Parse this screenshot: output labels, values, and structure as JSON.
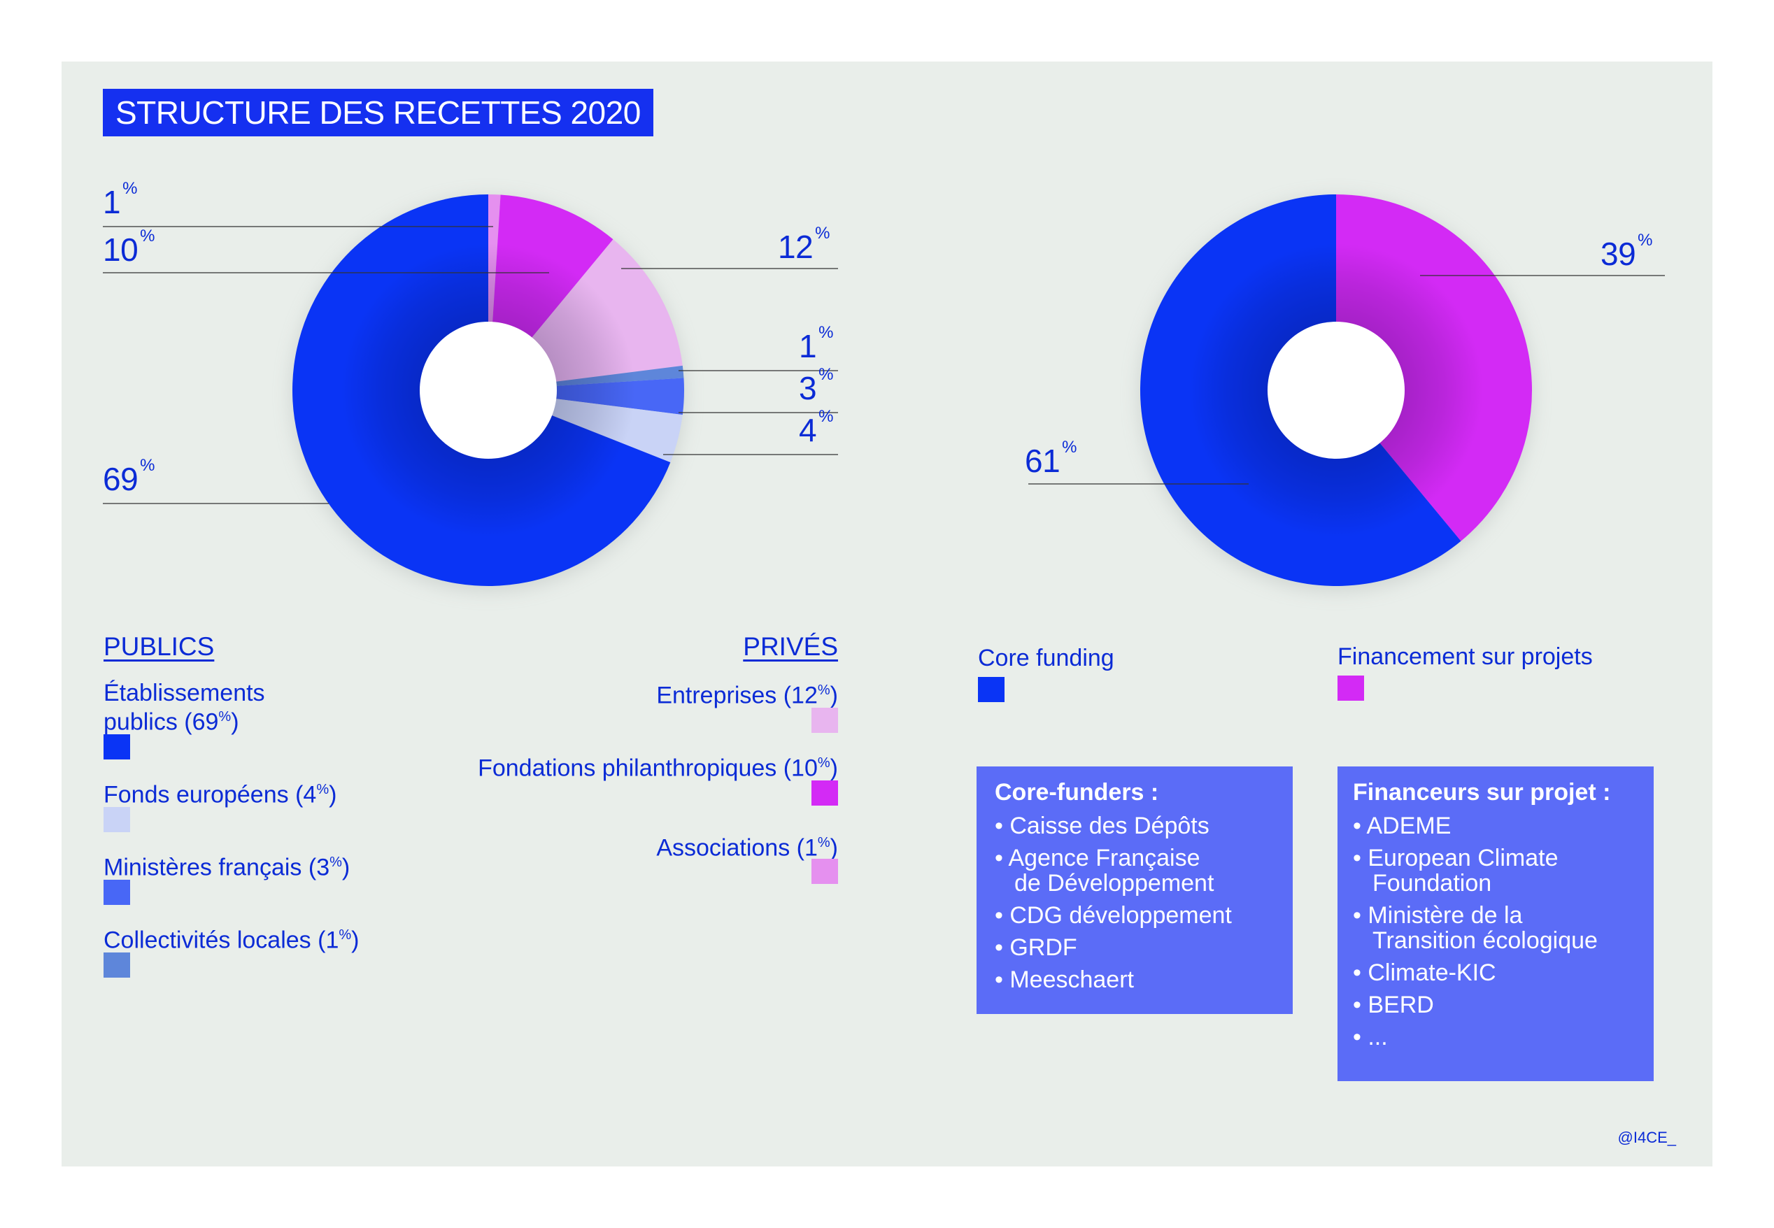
{
  "title": "STRUCTURE DES RECETTES 2020",
  "credit": "@I4CE_",
  "colors": {
    "background": "#e9eeea",
    "accent_blue": "#0a34f5",
    "magenta": "#d32af5",
    "box_blue": "#5b6cf7"
  },
  "chart_data": [
    {
      "type": "pie",
      "variant": "donut",
      "series": [
        {
          "label": "Établissements publics",
          "value": 69,
          "group": "PUBLICS",
          "color": "#0a34f5"
        },
        {
          "label": "Collectivités locales",
          "value": 1,
          "group": "PUBLICS",
          "color": "#5e86da"
        },
        {
          "label": "Fondations philanthropiques",
          "value": 10,
          "group": "PRIVÉS",
          "color": "#d32af5"
        },
        {
          "label": "Entreprises",
          "value": 12,
          "group": "PRIVÉS",
          "color": "#e8b5ef"
        },
        {
          "label": "Ministères français",
          "value": 3,
          "group": "PUBLICS",
          "color": "#4867f6"
        },
        {
          "label": "Fonds européens",
          "value": 4,
          "group": "PUBLICS",
          "color": "#c9d3f6"
        },
        {
          "label": "Associations",
          "value": 1,
          "group": "PRIVÉS",
          "color": "#e590ef"
        }
      ],
      "slice_order_clockwise_from_top": [
        "Associations",
        "Fondations philanthropiques",
        "Entreprises",
        "Collectivités locales",
        "Ministères français",
        "Fonds européens",
        "Établissements publics"
      ],
      "data_labels": [
        {
          "value": "1",
          "unit": "%"
        },
        {
          "value": "10",
          "unit": "%"
        },
        {
          "value": "12",
          "unit": "%"
        },
        {
          "value": "1",
          "unit": "%"
        },
        {
          "value": "3",
          "unit": "%"
        },
        {
          "value": "4",
          "unit": "%"
        },
        {
          "value": "69",
          "unit": "%"
        }
      ]
    },
    {
      "type": "pie",
      "variant": "donut",
      "series": [
        {
          "label": "Financement sur projets",
          "value": 39,
          "color": "#d32af5"
        },
        {
          "label": "Core funding",
          "value": 61,
          "color": "#0a34f5"
        }
      ],
      "data_labels": [
        {
          "value": "39",
          "unit": "%"
        },
        {
          "value": "61",
          "unit": "%"
        }
      ]
    }
  ],
  "legend_left": {
    "publics_header": "PUBLICS",
    "prives_header": "PRIVÉS",
    "publics": [
      {
        "text_line1": "Établissements",
        "text_line2": "publics (69",
        "pct": "%",
        "close": ")",
        "color": "#0a34f5"
      },
      {
        "text": "Fonds européens (4",
        "pct": "%",
        "close": ")",
        "color": "#c9d3f6"
      },
      {
        "text": "Ministères français (3",
        "pct": "%",
        "close": ")",
        "color": "#4867f6"
      },
      {
        "text": "Collectivités locales (1",
        "pct": "%",
        "close": ")",
        "color": "#5e86da"
      }
    ],
    "prives": [
      {
        "text": "Entreprises (12",
        "pct": "%",
        "close": ")",
        "color": "#e8b5ef"
      },
      {
        "text": "Fondations philanthropiques (10",
        "pct": "%",
        "close": ")",
        "color": "#d32af5"
      },
      {
        "text": "Associations (1",
        "pct": "%",
        "close": ")",
        "color": "#e590ef"
      }
    ]
  },
  "legend_right": {
    "core": {
      "text": "Core funding",
      "color": "#0a34f5"
    },
    "projets": {
      "text": "Financement sur projets",
      "color": "#d32af5"
    }
  },
  "boxes": {
    "core_funders": {
      "header": "Core-funders :",
      "items": [
        "• Caisse des Dépôts",
        "• Agence Française\nde Développement",
        "• CDG développement",
        "• GRDF",
        "• Meeschaert"
      ]
    },
    "financeurs": {
      "header": "Financeurs sur projet :",
      "items": [
        "• ADEME",
        "• European Climate\nFoundation",
        "• Ministère de la\nTransition écologique",
        "• Climate-KIC",
        "• BERD",
        "• ..."
      ]
    }
  }
}
